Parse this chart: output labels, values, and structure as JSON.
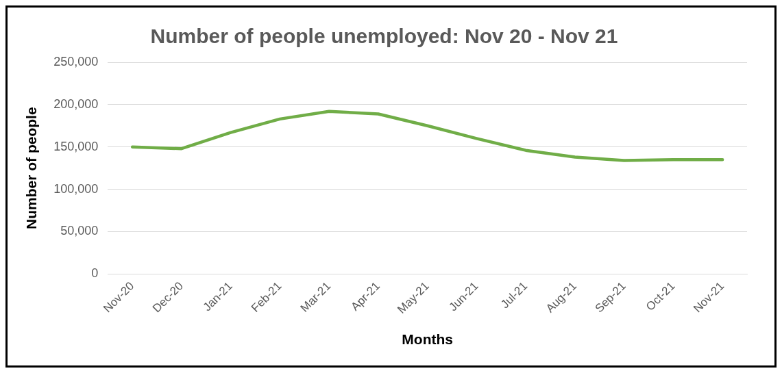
{
  "chart_data": {
    "type": "line",
    "title": "Number of people unemployed: Nov 20 - Nov 21",
    "xlabel": "Months",
    "ylabel": "Number of people",
    "categories": [
      "Nov-20",
      "Dec-20",
      "Jan-21",
      "Feb-21",
      "Mar-21",
      "Apr-21",
      "May-21",
      "Jun-21",
      "Jul-21",
      "Aug-21",
      "Sep-21",
      "Oct-21",
      "Nov-21"
    ],
    "series": [
      {
        "color": "#70ad47",
        "values": [
          150000,
          148000,
          167000,
          183000,
          192000,
          189000,
          175000,
          160000,
          146000,
          138000,
          134000,
          135000,
          135000
        ]
      }
    ],
    "ylim": [
      0,
      250000
    ],
    "yticks": [
      0,
      {
        "value": 50000,
        "label": "50,000"
      },
      {
        "value": 100000,
        "label": "100,000"
      },
      {
        "value": 150000,
        "label": "150,000"
      },
      {
        "value": 200000,
        "label": "200,000"
      },
      {
        "value": 250000,
        "label": "250,000"
      }
    ],
    "grid": "y",
    "legend": false,
    "marker": "none",
    "line_style": "solid"
  }
}
